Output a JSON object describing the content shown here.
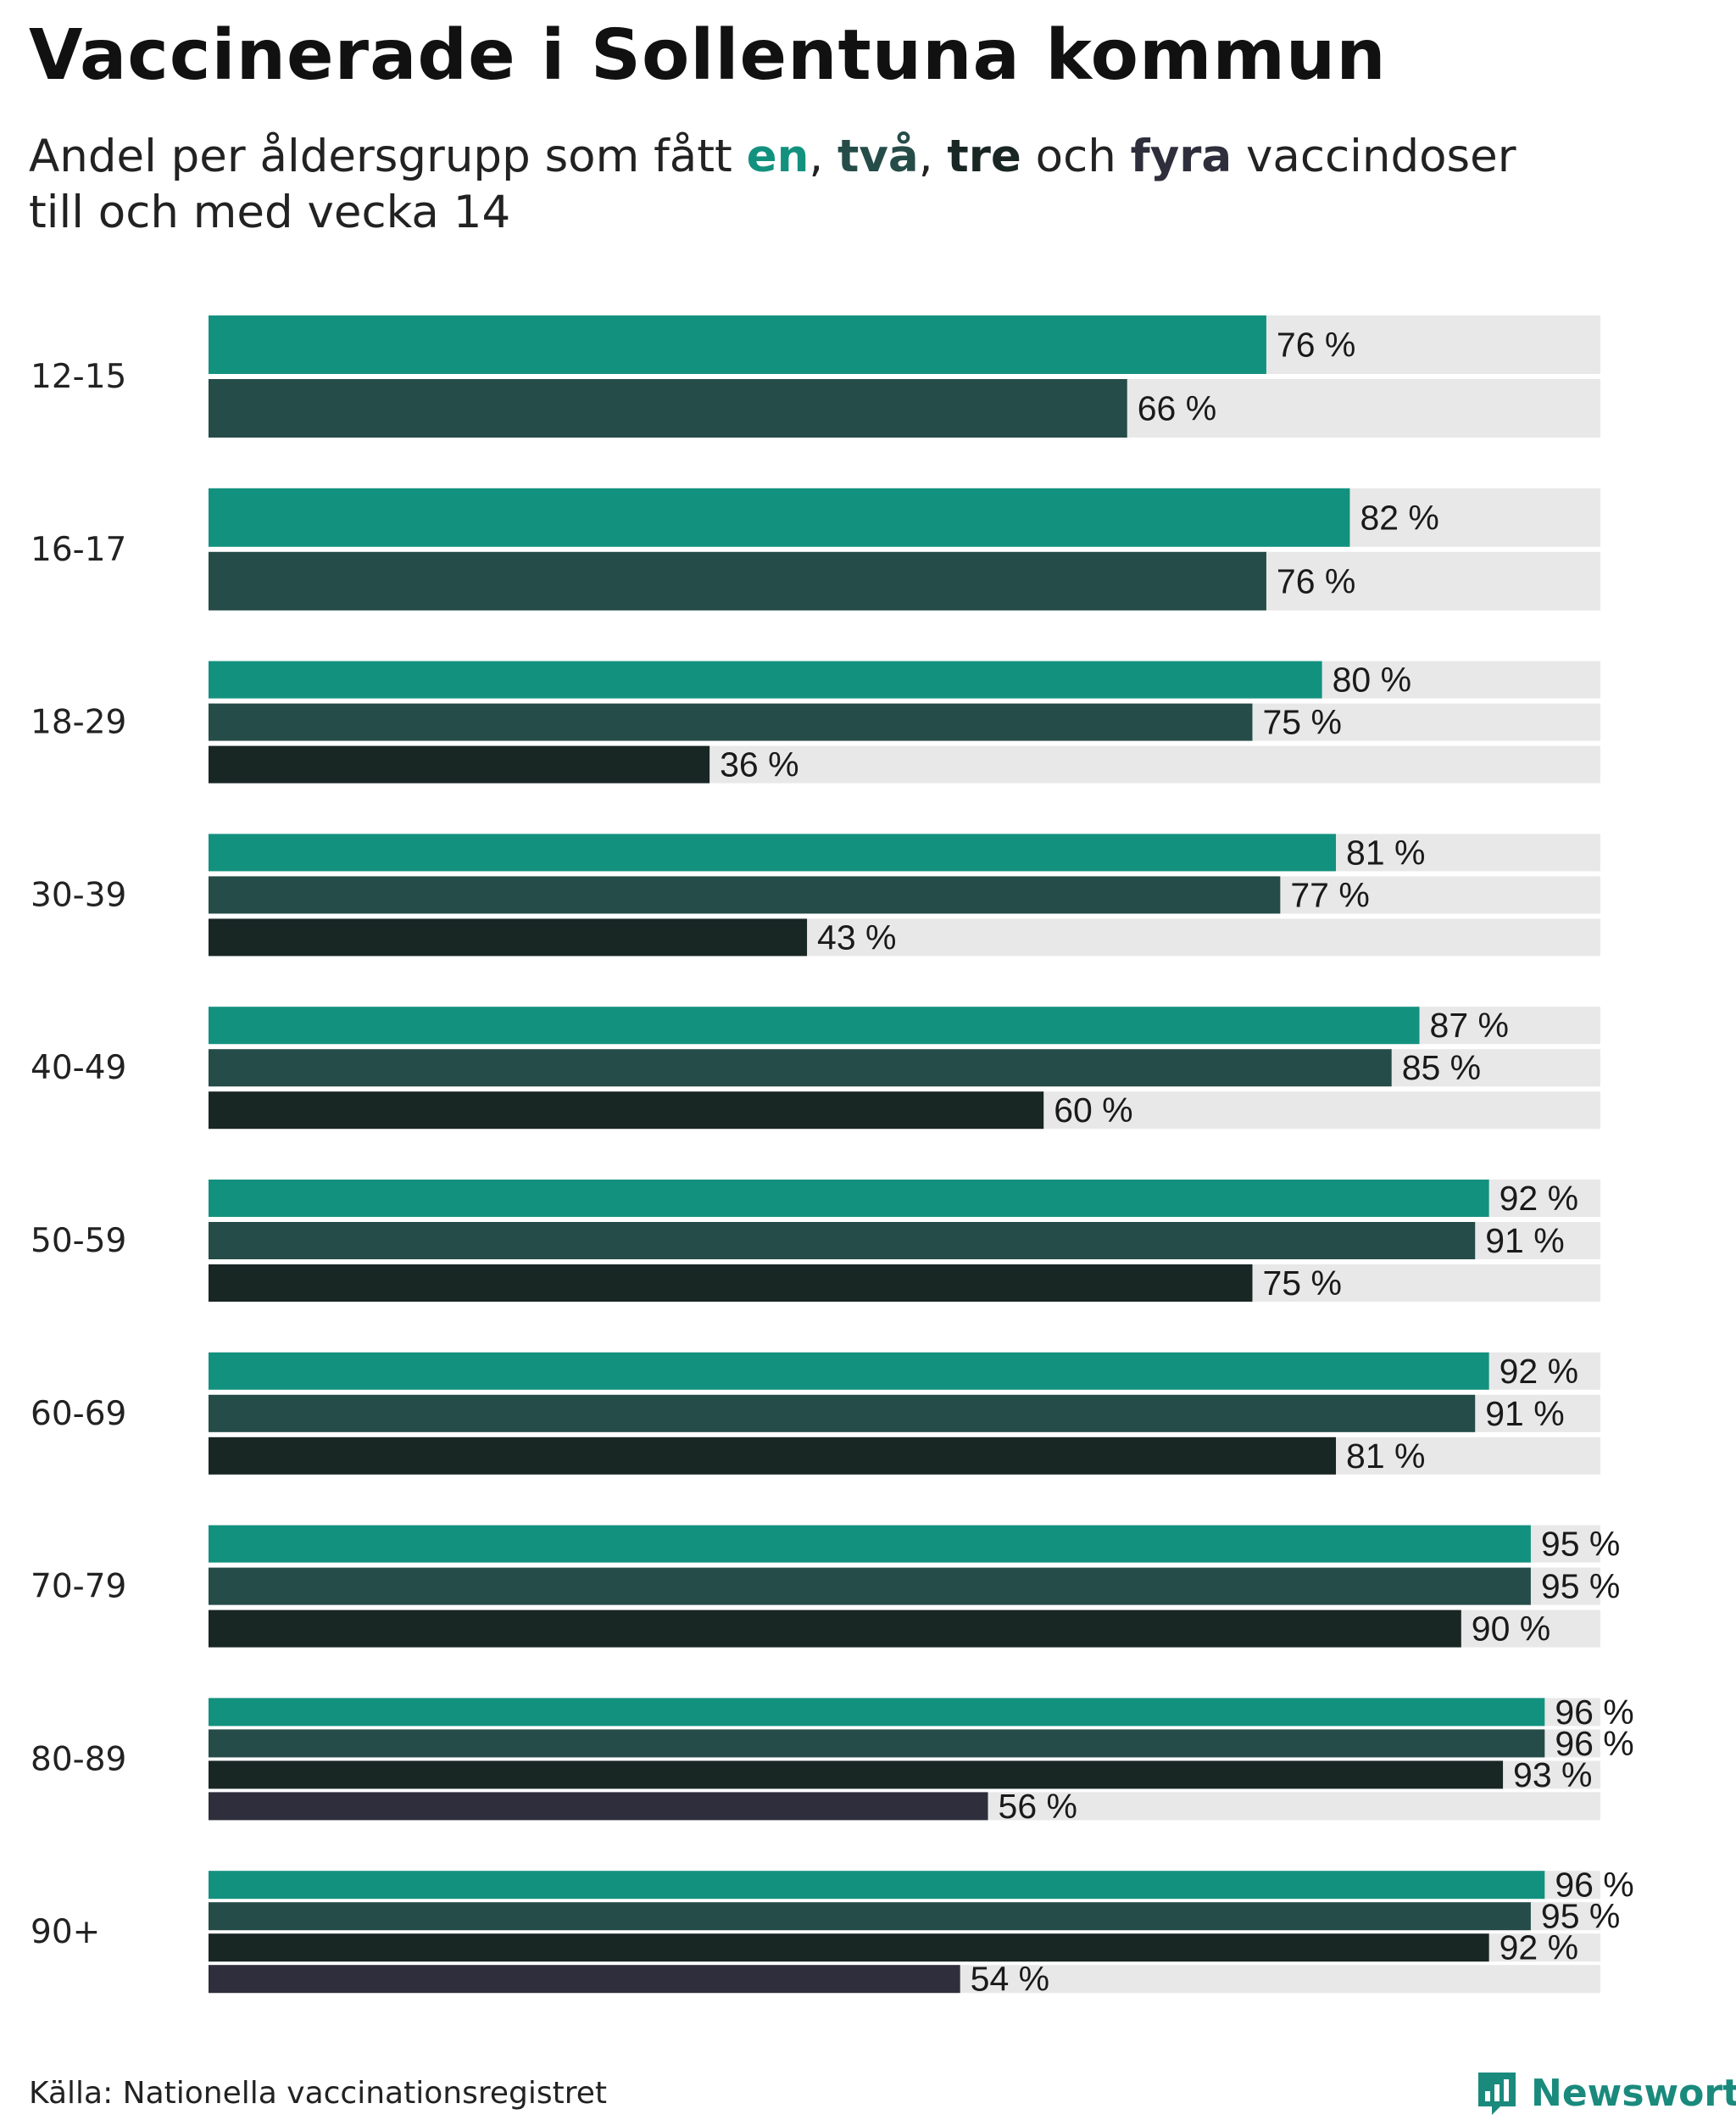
{
  "title": "Vaccinerade i Sollentuna kommun",
  "subtitle": {
    "part1": "Andel per åldersgrupp som fått ",
    "en": "en",
    "sep1": ", ",
    "tva": "två",
    "sep2": ", ",
    "tre": "tre",
    "och": " och ",
    "fyra": "fyra",
    "part2": " vaccindoser",
    "line2": "till och med vecka 14"
  },
  "colors": {
    "one_dose": "#13917f",
    "two_doses": "#254c48",
    "three_doses": "#182624",
    "four_doses": "#2f2e3c",
    "track": "#e8e8e8",
    "brand": "#1a8a7d"
  },
  "chart_data": {
    "type": "bar",
    "orientation": "horizontal",
    "title": "Vaccinerade i Sollentuna kommun",
    "xlim": [
      0,
      100
    ],
    "unit": "%",
    "series_names": [
      "en",
      "två",
      "tre",
      "fyra"
    ],
    "groups": [
      {
        "label": "12-15",
        "values": [
          76,
          66
        ]
      },
      {
        "label": "16-17",
        "values": [
          82,
          76
        ]
      },
      {
        "label": "18-29",
        "values": [
          80,
          75,
          36
        ]
      },
      {
        "label": "30-39",
        "values": [
          81,
          77,
          43
        ]
      },
      {
        "label": "40-49",
        "values": [
          87,
          85,
          60
        ]
      },
      {
        "label": "50-59",
        "values": [
          92,
          91,
          75
        ]
      },
      {
        "label": "60-69",
        "values": [
          92,
          91,
          81
        ]
      },
      {
        "label": "70-79",
        "values": [
          95,
          95,
          90
        ]
      },
      {
        "label": "80-89",
        "values": [
          96,
          96,
          93,
          56
        ]
      },
      {
        "label": "90+",
        "values": [
          96,
          95,
          92,
          54
        ]
      }
    ]
  },
  "footer": {
    "source": "Källa: Nationella vaccinationsregistret",
    "brand": "Newsworthy",
    "brand_icon": "bar-chart-bubble-icon"
  }
}
